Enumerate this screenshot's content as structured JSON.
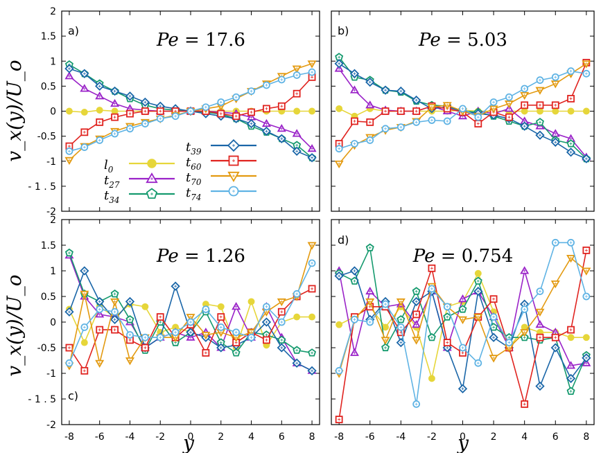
{
  "figure": {
    "ylabel": "v_x(y)/U_o",
    "xlabel": "y"
  },
  "legend": {
    "entries": [
      {
        "key": "l0",
        "base": "l",
        "sub": "0"
      },
      {
        "key": "t27",
        "base": "t",
        "sub": "27"
      },
      {
        "key": "t34",
        "base": "t",
        "sub": "34"
      },
      {
        "key": "t39",
        "base": "t",
        "sub": "39"
      },
      {
        "key": "t60",
        "base": "t",
        "sub": "60"
      },
      {
        "key": "t70",
        "base": "t",
        "sub": "70"
      },
      {
        "key": "t74",
        "base": "t",
        "sub": "74"
      }
    ]
  },
  "colors": {
    "l0": "#e6d63a",
    "t27": "#9a22c8",
    "t34": "#159a6e",
    "t39": "#1a66a8",
    "t60": "#e0231f",
    "t70": "#e39a10",
    "t74": "#5fb3e4"
  },
  "markers": {
    "l0": "circle-filled",
    "t27": "triangle-up",
    "t34": "pentagon",
    "t39": "diamond",
    "t60": "square",
    "t70": "triangle-down",
    "t74": "circle"
  },
  "chart_data": [
    {
      "type": "line",
      "panel": "a)",
      "annotation": "Pe = 17.6",
      "x": [
        -8,
        -7,
        -6,
        -5,
        -4,
        -3,
        -2,
        -1,
        0,
        1,
        2,
        3,
        4,
        5,
        6,
        7,
        8
      ],
      "xlim": [
        -8.5,
        8.5
      ],
      "ylim": [
        -2,
        2
      ],
      "yticks": [
        "2",
        "1.5",
        "1",
        "0.5",
        "0",
        "-0.5",
        "-1",
        "- 1 . 5",
        "-2"
      ],
      "xticks": [],
      "series": [
        {
          "name": "l0",
          "values": [
            0,
            -0.02,
            0.02,
            0,
            0,
            0,
            0,
            0,
            0,
            0,
            0,
            0,
            0,
            0,
            0,
            0,
            0
          ]
        },
        {
          "name": "t27",
          "values": [
            0.7,
            0.45,
            0.3,
            0.15,
            0.05,
            0.02,
            0,
            0,
            0,
            0,
            -0.02,
            -0.05,
            -0.12,
            -0.25,
            -0.35,
            -0.45,
            -0.75
          ]
        },
        {
          "name": "t34",
          "values": [
            0.93,
            0.75,
            0.55,
            0.4,
            0.25,
            0.12,
            0.05,
            0.02,
            0,
            -0.02,
            -0.06,
            -0.15,
            -0.3,
            -0.42,
            -0.55,
            -0.68,
            -0.93
          ]
        },
        {
          "name": "t39",
          "values": [
            0.85,
            0.75,
            0.5,
            0.4,
            0.3,
            0.18,
            0.1,
            0.05,
            0,
            -0.05,
            -0.1,
            -0.15,
            -0.25,
            -0.4,
            -0.55,
            -0.8,
            -0.93
          ]
        },
        {
          "name": "t60",
          "values": [
            -0.7,
            -0.42,
            -0.22,
            -0.12,
            -0.05,
            0,
            0,
            0,
            0,
            0,
            -0.05,
            -0.1,
            -0.02,
            0.05,
            0.1,
            0.35,
            0.68
          ]
        },
        {
          "name": "t70",
          "values": [
            -0.98,
            -0.7,
            -0.55,
            -0.4,
            -0.3,
            -0.22,
            -0.15,
            -0.08,
            0,
            0.05,
            0.1,
            0.25,
            0.4,
            0.55,
            0.7,
            0.85,
            0.95
          ]
        },
        {
          "name": "t74",
          "values": [
            -0.8,
            -0.72,
            -0.58,
            -0.45,
            -0.35,
            -0.25,
            -0.15,
            -0.1,
            0,
            0.08,
            0.18,
            0.28,
            0.4,
            0.52,
            0.63,
            0.72,
            0.78
          ]
        }
      ]
    },
    {
      "type": "line",
      "panel": "b)",
      "annotation": "Pe = 5.03",
      "x": [
        -8,
        -7,
        -6,
        -5,
        -4,
        -3,
        -2,
        -1,
        0,
        1,
        2,
        3,
        4,
        5,
        6,
        7,
        8
      ],
      "xlim": [
        -8.5,
        8.5
      ],
      "ylim": [
        -2,
        2
      ],
      "yticks": [],
      "xticks": [],
      "series": [
        {
          "name": "l0",
          "values": [
            0.05,
            -0.1,
            0.05,
            0,
            0,
            0,
            0,
            0,
            0.02,
            0,
            0,
            0,
            0,
            0,
            0,
            0,
            0
          ]
        },
        {
          "name": "t27",
          "values": [
            0.85,
            0.42,
            0.12,
            0.02,
            0,
            0,
            0.1,
            0,
            -0.1,
            0,
            -0.05,
            0.05,
            -0.2,
            -0.3,
            -0.45,
            -0.55,
            -0.92
          ]
        },
        {
          "name": "t34",
          "values": [
            1.08,
            0.68,
            0.62,
            0.42,
            0.38,
            0.2,
            0.12,
            0.1,
            0,
            -0.02,
            -0.1,
            -0.2,
            -0.3,
            -0.22,
            -0.58,
            -0.65,
            -0.95
          ]
        },
        {
          "name": "t39",
          "values": [
            0.95,
            0.75,
            0.58,
            0.42,
            0.4,
            0.22,
            0.05,
            0.08,
            0,
            -0.05,
            -0.08,
            -0.15,
            -0.3,
            -0.48,
            -0.62,
            -0.82,
            -0.95
          ]
        },
        {
          "name": "t60",
          "values": [
            -0.65,
            -0.2,
            -0.22,
            0,
            0,
            0,
            0.1,
            0.05,
            -0.02,
            -0.25,
            -0.02,
            -0.12,
            0.12,
            0.12,
            0.12,
            0.25,
            0.97
          ]
        },
        {
          "name": "t70",
          "values": [
            -1.05,
            -0.68,
            -0.52,
            -0.38,
            -0.32,
            -0.2,
            0.08,
            0.12,
            0,
            -0.1,
            0.05,
            0.15,
            0.32,
            0.42,
            0.55,
            0.75,
            0.95
          ]
        },
        {
          "name": "t74",
          "values": [
            -0.75,
            -0.65,
            -0.58,
            -0.35,
            -0.32,
            -0.22,
            -0.18,
            -0.2,
            0.05,
            -0.12,
            0.18,
            0.28,
            0.45,
            0.62,
            0.68,
            0.8,
            0.75
          ]
        }
      ]
    },
    {
      "type": "line",
      "panel": "c)",
      "annotation": "Pe = 1.26",
      "x": [
        -8,
        -7,
        -6,
        -5,
        -4,
        -3,
        -2,
        -1,
        0,
        1,
        2,
        3,
        4,
        5,
        6,
        7,
        8
      ],
      "xlim": [
        -8.5,
        8.5
      ],
      "ylim": [
        -2,
        2
      ],
      "yticks": [
        "2",
        "1.5",
        "1",
        "0.5",
        "0",
        "-0.5",
        "-1",
        "- 1 . 5",
        "-2"
      ],
      "xticks": [
        "-8",
        "-6",
        "-4",
        "-2",
        "0",
        "2",
        "4",
        "6",
        "8"
      ],
      "series": [
        {
          "name": "l0",
          "values": [
            0.25,
            -0.4,
            0.3,
            0.1,
            0.35,
            0.3,
            -0.2,
            -0.1,
            -0.2,
            0.35,
            0.3,
            -0.5,
            0.4,
            -0.45,
            0,
            0.1,
            0.1
          ]
        },
        {
          "name": "t27",
          "values": [
            1.3,
            0.5,
            0.15,
            0.1,
            0,
            -0.5,
            -0.3,
            -0.2,
            -0.3,
            -0.2,
            -0.5,
            0.3,
            -0.3,
            0.3,
            -0.3,
            -0.8,
            -0.95
          ]
        },
        {
          "name": "t34",
          "values": [
            1.35,
            0.55,
            0.4,
            0.55,
            0.05,
            -0.55,
            0,
            -0.4,
            -0.2,
            0.2,
            -0.4,
            -0.6,
            -0.2,
            -0.25,
            -0.35,
            -0.55,
            -0.6
          ]
        },
        {
          "name": "t39",
          "values": [
            0.2,
            1.0,
            0.4,
            0.05,
            0.4,
            -0.5,
            -0.3,
            0.7,
            -0.2,
            -0.3,
            -0.5,
            -0.45,
            -0.3,
            0,
            -0.5,
            -0.8,
            -0.95
          ]
        },
        {
          "name": "t60",
          "values": [
            -0.5,
            -0.95,
            -0.15,
            -0.15,
            -0.35,
            -0.5,
            0.1,
            -0.3,
            -0.05,
            -0.6,
            0.1,
            -0.4,
            -0.2,
            -0.35,
            0.2,
            0.5,
            0.65
          ]
        },
        {
          "name": "t70",
          "values": [
            -0.85,
            0.55,
            -0.8,
            0.4,
            -0.75,
            -0.3,
            -0.3,
            -0.3,
            0.1,
            -0.25,
            -0.2,
            -0.3,
            -0.2,
            0.2,
            0.4,
            0.5,
            1.5
          ]
        },
        {
          "name": "t74",
          "values": [
            -0.8,
            -0.1,
            0.25,
            0.2,
            -0.25,
            -0.3,
            -0.3,
            -0.2,
            0,
            0.25,
            -0.1,
            -0.2,
            -0.3,
            0.3,
            0,
            0.55,
            1.15
          ]
        }
      ]
    },
    {
      "type": "line",
      "panel": "d)",
      "annotation": "Pe = 0.754",
      "x": [
        -8,
        -7,
        -6,
        -5,
        -4,
        -3,
        -2,
        -1,
        0,
        1,
        2,
        3,
        4,
        5,
        6,
        7,
        8
      ],
      "xlim": [
        -8.5,
        8.5
      ],
      "ylim": [
        -2,
        2
      ],
      "yticks": [],
      "xticks": [
        "-8",
        "-6",
        "-4",
        "-2",
        "0",
        "2",
        "4",
        "6",
        "8"
      ],
      "series": [
        {
          "name": "l0",
          "values": [
            -0.05,
            0.1,
            0.3,
            -0.1,
            0.3,
            -0.1,
            -1.1,
            0.3,
            0.4,
            0.95,
            0.2,
            -0.5,
            -0.1,
            -0.2,
            -0.2,
            -0.3,
            -0.3
          ]
        },
        {
          "name": "t27",
          "values": [
            1.0,
            -0.6,
            0.6,
            0.3,
            0.35,
            -0.05,
            0.6,
            -0.5,
            0.45,
            0.6,
            0.1,
            -0.5,
            1.0,
            -0.05,
            -0.2,
            -0.85,
            -0.8
          ]
        },
        {
          "name": "t34",
          "values": [
            0.95,
            0.8,
            1.45,
            -0.5,
            0.05,
            0.6,
            -0.3,
            0.1,
            0.25,
            0.8,
            -0.1,
            -0.3,
            -0.3,
            -0.35,
            -0.3,
            -1.35,
            -0.65
          ]
        },
        {
          "name": "t39",
          "values": [
            0.9,
            1.0,
            0.05,
            0.4,
            -0.4,
            0.4,
            0.6,
            -0.5,
            -1.3,
            0.6,
            -0.3,
            -0.5,
            0.35,
            -1.25,
            -0.5,
            -1.1,
            -0.7
          ]
        },
        {
          "name": "t60",
          "values": [
            -1.9,
            0.1,
            0.3,
            0.3,
            -0.2,
            0.15,
            1.05,
            -0.4,
            -0.6,
            0.1,
            0.45,
            -0.5,
            -1.6,
            -0.3,
            -0.3,
            -0.15,
            1.4
          ]
        },
        {
          "name": "t70",
          "values": [
            -1.0,
            0.05,
            0.4,
            -0.35,
            0.4,
            -0.35,
            0.7,
            0.3,
            0.05,
            0.1,
            -0.7,
            -0.5,
            -0.2,
            0.2,
            0.75,
            1.25,
            1.0
          ]
        },
        {
          "name": "t74",
          "values": [
            -0.95,
            0.05,
            0,
            0.35,
            -0.1,
            -1.6,
            0.65,
            0.3,
            -0.5,
            -0.8,
            0.1,
            -0.4,
            0.25,
            0.6,
            1.55,
            1.55,
            0.5
          ]
        }
      ]
    }
  ]
}
